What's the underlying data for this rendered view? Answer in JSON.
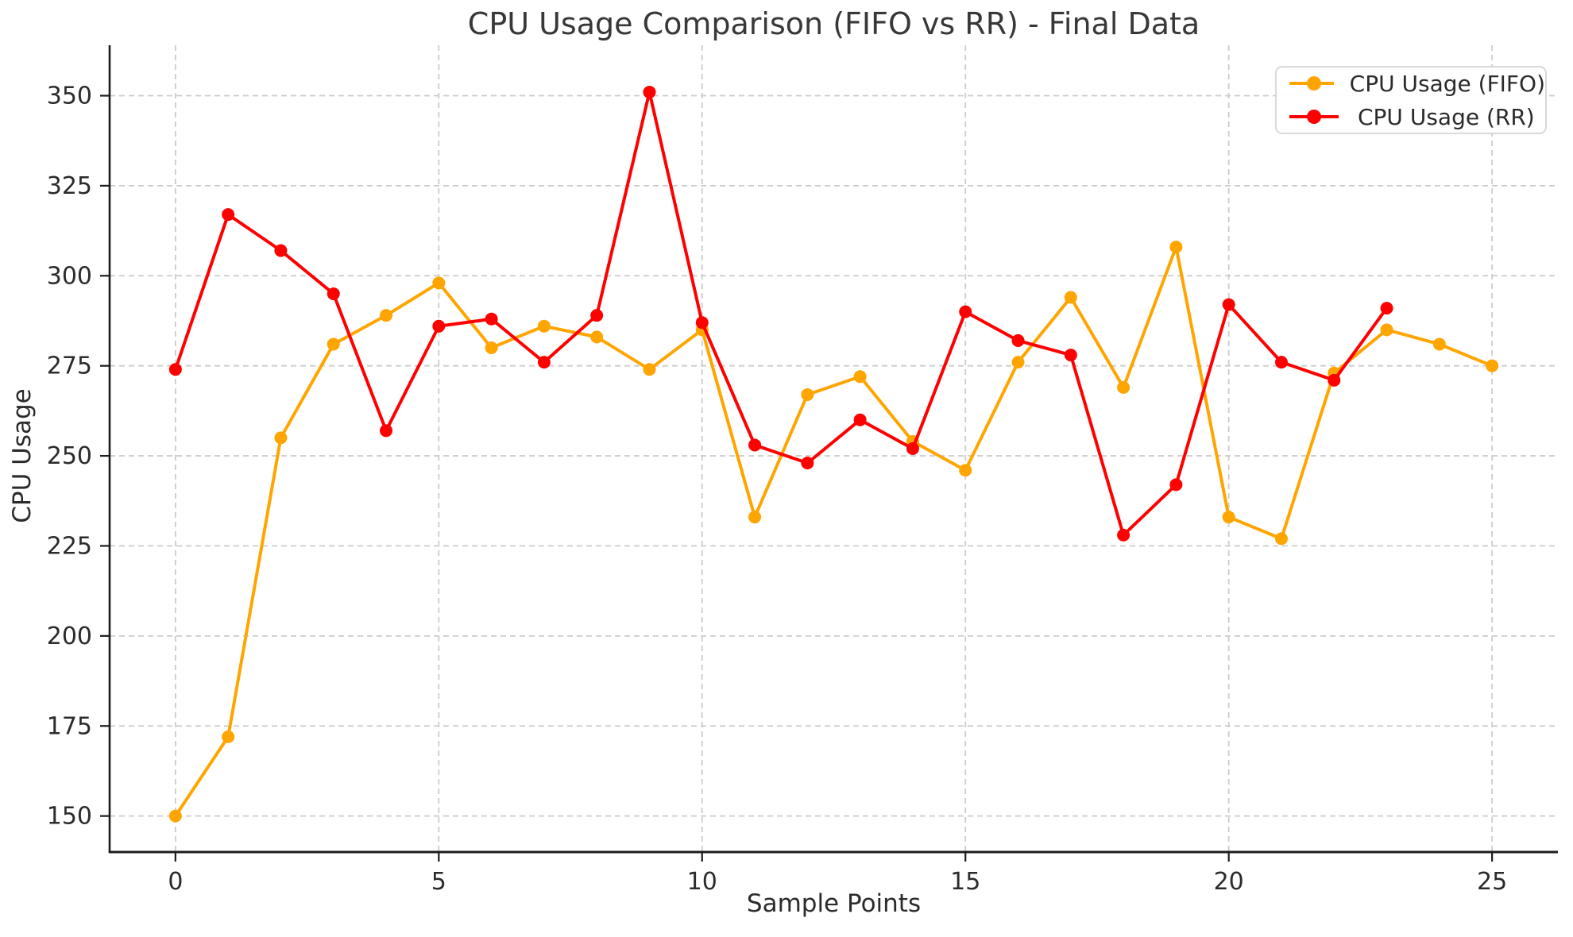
{
  "chart_data": {
    "type": "line",
    "title": "CPU Usage Comparison (FIFO vs RR) - Final Data",
    "xlabel": "Sample Points",
    "ylabel": "CPU Usage",
    "x_ticks": [
      0,
      5,
      10,
      15,
      20,
      25
    ],
    "y_ticks": [
      150,
      175,
      200,
      225,
      250,
      275,
      300,
      325,
      350
    ],
    "xlim": [
      -1.25,
      26.25
    ],
    "ylim": [
      140,
      364
    ],
    "grid": true,
    "grid_color": "#cccccc",
    "legend_position": "upper right",
    "series": [
      {
        "name": "CPU Usage (FIFO)",
        "color": "#ffa500",
        "x": [
          0,
          1,
          2,
          3,
          4,
          5,
          6,
          7,
          8,
          9,
          10,
          11,
          12,
          13,
          14,
          15,
          16,
          17,
          18,
          19,
          20,
          21,
          22,
          23,
          24,
          25
        ],
        "values": [
          150,
          172,
          255,
          281,
          289,
          298,
          280,
          286,
          283,
          274,
          285,
          233,
          267,
          272,
          254,
          246,
          276,
          294,
          269,
          308,
          233,
          227,
          273,
          285,
          281,
          275
        ]
      },
      {
        "name": "CPU Usage (RR)",
        "color": "#ff0000",
        "x": [
          0,
          1,
          2,
          3,
          4,
          5,
          6,
          7,
          8,
          9,
          10,
          11,
          12,
          13,
          14,
          15,
          16,
          17,
          18,
          19,
          20,
          21,
          22,
          23
        ],
        "values": [
          274,
          317,
          307,
          295,
          257,
          286,
          288,
          276,
          289,
          351,
          287,
          253,
          248,
          260,
          252,
          290,
          282,
          278,
          228,
          242,
          292,
          276,
          271,
          291
        ]
      }
    ]
  }
}
